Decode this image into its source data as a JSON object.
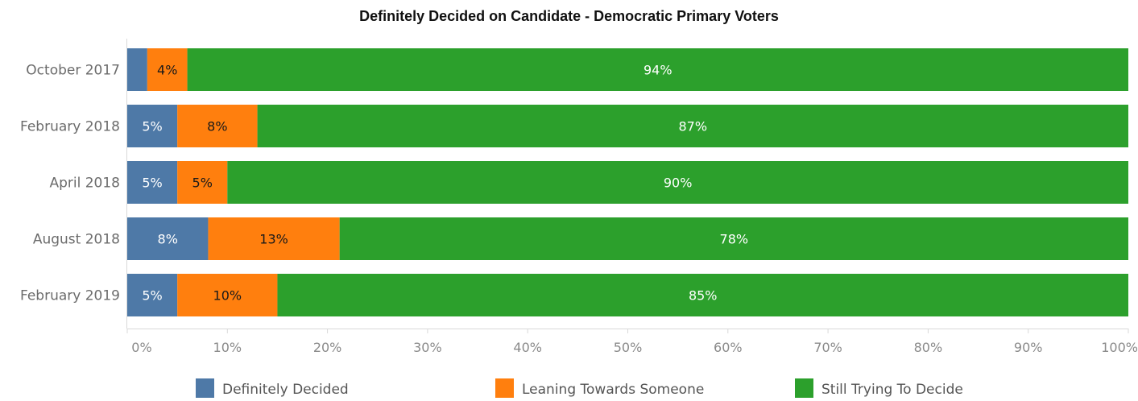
{
  "chart_data": {
    "type": "bar",
    "orientation": "horizontal",
    "stacked": true,
    "title": "Definitely Decided on Candidate - Democratic Primary Voters",
    "categories": [
      "October 2017",
      "February 2018",
      "April 2018",
      "August 2018",
      "February 2019"
    ],
    "series": [
      {
        "name": "Definitely Decided",
        "color": "#4e79a7",
        "values": [
          2,
          5,
          5,
          8,
          5
        ],
        "labels": [
          "",
          "5%",
          "5%",
          "8%",
          "5%"
        ],
        "label_color": "#ffffff"
      },
      {
        "name": "Leaning Towards Someone",
        "color": "#ff7f0e",
        "values": [
          4,
          8,
          5,
          13,
          10
        ],
        "labels": [
          "4%",
          "8%",
          "5%",
          "13%",
          "10%"
        ],
        "label_color": "#1a1a1a"
      },
      {
        "name": "Still Trying To Decide",
        "color": "#2ca02c",
        "values": [
          94,
          87,
          90,
          78,
          85
        ],
        "labels": [
          "94%",
          "87%",
          "90%",
          "78%",
          "85%"
        ],
        "label_color": "#ffffff"
      }
    ],
    "xlim": [
      0,
      100
    ],
    "x_ticks": [
      "0%",
      "10%",
      "20%",
      "30%",
      "40%",
      "50%",
      "60%",
      "70%",
      "80%",
      "90%",
      "100%"
    ],
    "grid": false,
    "legend_position": "bottom"
  }
}
